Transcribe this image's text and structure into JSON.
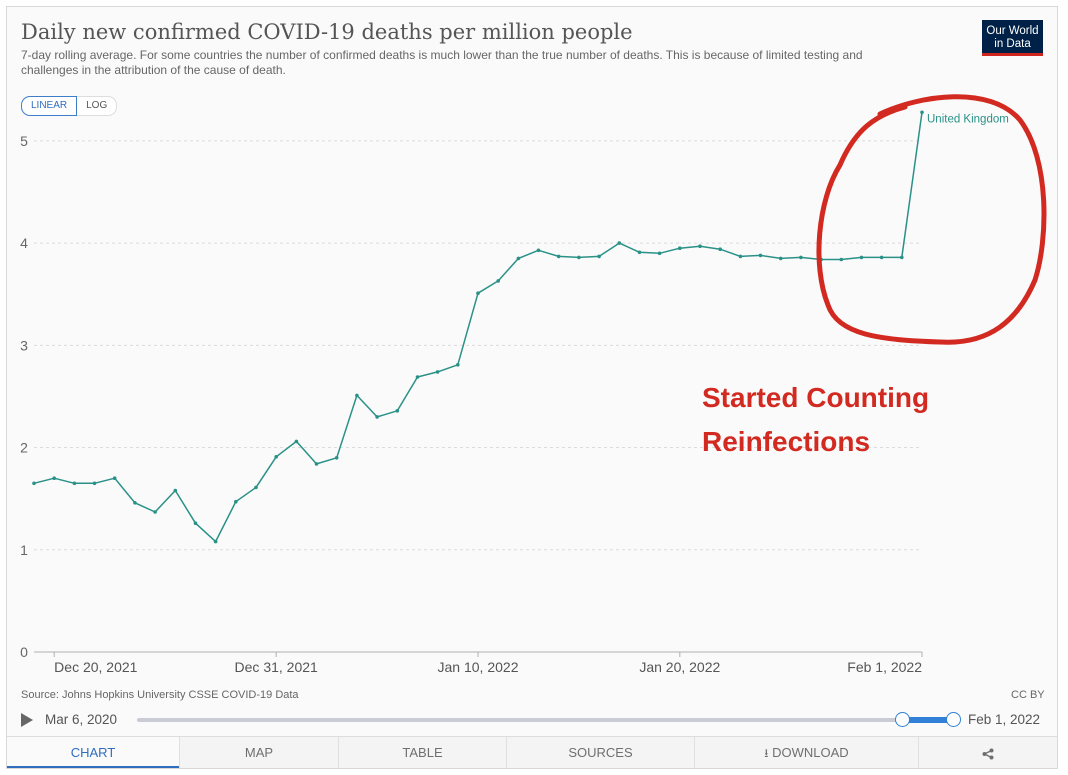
{
  "header": {
    "title": "Daily new confirmed COVID-19 deaths per million people",
    "subtitle": "7-day rolling average. For some countries the number of confirmed deaths is much lower than the true number of deaths. This is because of limited testing and challenges in the attribution of the cause of death.",
    "logo_line1": "Our World",
    "logo_line2": "in Data"
  },
  "scale_toggle": {
    "linear_label": "LINEAR",
    "log_label": "LOG",
    "selected": "LINEAR"
  },
  "chart_data": {
    "type": "line",
    "title": "Daily new confirmed COVID-19 deaths per million people",
    "xlabel": "",
    "ylabel": "",
    "ylim": [
      0,
      5.4
    ],
    "yticks": [
      0,
      1,
      2,
      3,
      4,
      5
    ],
    "xtick_labels": [
      "Dec 20, 2021",
      "Dec 31, 2021",
      "Jan 10, 2022",
      "Jan 20, 2022",
      "Feb 1, 2022"
    ],
    "xtick_dates": [
      "2021-12-20",
      "2021-12-31",
      "2022-01-10",
      "2022-01-20",
      "2022-02-01"
    ],
    "grid": "horizontal dashed",
    "series": [
      {
        "name": "United Kingdom",
        "color": "#2a9187",
        "x": [
          "2021-12-19",
          "2021-12-20",
          "2021-12-21",
          "2021-12-22",
          "2021-12-23",
          "2021-12-24",
          "2021-12-25",
          "2021-12-26",
          "2021-12-27",
          "2021-12-28",
          "2021-12-29",
          "2021-12-30",
          "2021-12-31",
          "2022-01-01",
          "2022-01-02",
          "2022-01-03",
          "2022-01-04",
          "2022-01-05",
          "2022-01-06",
          "2022-01-07",
          "2022-01-08",
          "2022-01-09",
          "2022-01-10",
          "2022-01-11",
          "2022-01-12",
          "2022-01-13",
          "2022-01-14",
          "2022-01-15",
          "2022-01-16",
          "2022-01-17",
          "2022-01-18",
          "2022-01-19",
          "2022-01-20",
          "2022-01-21",
          "2022-01-22",
          "2022-01-23",
          "2022-01-24",
          "2022-01-25",
          "2022-01-26",
          "2022-01-27",
          "2022-01-28",
          "2022-01-29",
          "2022-01-30",
          "2022-01-31",
          "2022-02-01"
        ],
        "y": [
          1.65,
          1.7,
          1.65,
          1.65,
          1.7,
          1.46,
          1.37,
          1.58,
          1.26,
          1.08,
          1.47,
          1.61,
          1.91,
          2.06,
          1.84,
          1.9,
          2.51,
          2.3,
          2.36,
          2.69,
          2.74,
          2.81,
          3.51,
          3.63,
          3.85,
          3.93,
          3.87,
          3.86,
          3.87,
          4.0,
          3.91,
          3.9,
          3.95,
          3.97,
          3.94,
          3.87,
          3.88,
          3.85,
          3.86,
          3.84,
          3.84,
          3.86,
          3.86,
          3.86,
          5.28
        ]
      }
    ],
    "series_label": "United Kingdom"
  },
  "annotation": {
    "line1": "Started Counting",
    "line2": "Reinfections",
    "color": "#d22a21"
  },
  "footer": {
    "source": "Source: Johns Hopkins University CSSE COVID-19 Data",
    "license": "CC BY"
  },
  "timeline": {
    "start_label": "Mar 6, 2020",
    "end_label": "Feb 1, 2022"
  },
  "tabs": [
    {
      "label": "CHART",
      "active": true
    },
    {
      "label": "MAP"
    },
    {
      "label": "TABLE"
    },
    {
      "label": "SOURCES"
    },
    {
      "label": "DOWNLOAD",
      "icon": "download-icon"
    },
    {
      "label": "",
      "icon": "share-icon"
    }
  ]
}
